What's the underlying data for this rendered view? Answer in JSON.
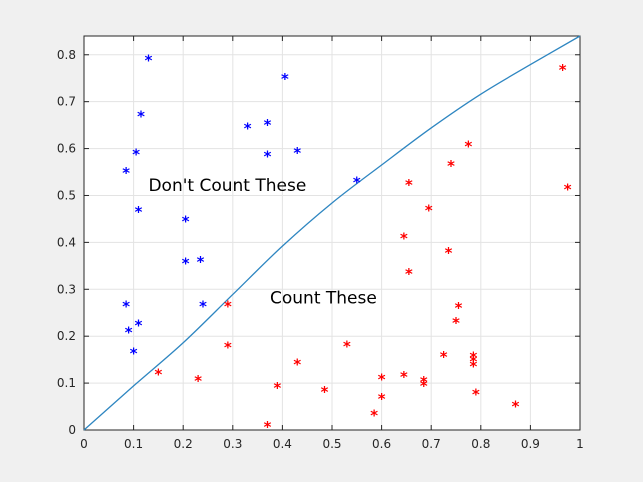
{
  "chart_data": {
    "type": "scatter",
    "xlim": [
      0,
      1
    ],
    "ylim": [
      0,
      0.84
    ],
    "x_ticks": [
      "0",
      "0.1",
      "0.2",
      "0.3",
      "0.4",
      "0.5",
      "0.6",
      "0.7",
      "0.8",
      "0.9",
      "1"
    ],
    "y_ticks": [
      "0",
      "0.1",
      "0.2",
      "0.3",
      "0.4",
      "0.5",
      "0.6",
      "0.7",
      "0.8"
    ],
    "grid": true,
    "curve": {
      "color": "#2e86c1",
      "x": [
        0,
        0.1,
        0.2,
        0.3,
        0.4,
        0.5,
        0.6,
        0.7,
        0.8,
        0.9,
        1.0
      ],
      "y": [
        0,
        0.094,
        0.186,
        0.289,
        0.392,
        0.484,
        0.565,
        0.644,
        0.716,
        0.779,
        0.84
      ]
    },
    "series": [
      {
        "color": "#0000ff",
        "marker": "*",
        "points": [
          [
            0.13,
            0.79
          ],
          [
            0.405,
            0.75
          ],
          [
            0.115,
            0.67
          ],
          [
            0.33,
            0.645
          ],
          [
            0.37,
            0.652
          ],
          [
            0.105,
            0.59
          ],
          [
            0.37,
            0.585
          ],
          [
            0.43,
            0.593
          ],
          [
            0.085,
            0.55
          ],
          [
            0.55,
            0.53
          ],
          [
            0.11,
            0.467
          ],
          [
            0.205,
            0.447
          ],
          [
            0.205,
            0.357
          ],
          [
            0.235,
            0.36
          ],
          [
            0.085,
            0.265
          ],
          [
            0.24,
            0.265
          ],
          [
            0.11,
            0.225
          ],
          [
            0.09,
            0.21
          ],
          [
            0.1,
            0.165
          ]
        ]
      },
      {
        "color": "#ff0000",
        "marker": "*",
        "points": [
          [
            0.965,
            0.77
          ],
          [
            0.775,
            0.607
          ],
          [
            0.74,
            0.565
          ],
          [
            0.655,
            0.525
          ],
          [
            0.975,
            0.515
          ],
          [
            0.695,
            0.47
          ],
          [
            0.645,
            0.41
          ],
          [
            0.735,
            0.38
          ],
          [
            0.655,
            0.335
          ],
          [
            0.29,
            0.265
          ],
          [
            0.755,
            0.262
          ],
          [
            0.75,
            0.23
          ],
          [
            0.53,
            0.18
          ],
          [
            0.29,
            0.178
          ],
          [
            0.725,
            0.158
          ],
          [
            0.785,
            0.157
          ],
          [
            0.785,
            0.148
          ],
          [
            0.43,
            0.142
          ],
          [
            0.785,
            0.138
          ],
          [
            0.15,
            0.12
          ],
          [
            0.645,
            0.115
          ],
          [
            0.6,
            0.11
          ],
          [
            0.23,
            0.107
          ],
          [
            0.685,
            0.105
          ],
          [
            0.685,
            0.096
          ],
          [
            0.39,
            0.092
          ],
          [
            0.485,
            0.083
          ],
          [
            0.79,
            0.078
          ],
          [
            0.6,
            0.068
          ],
          [
            0.87,
            0.052
          ],
          [
            0.585,
            0.033
          ],
          [
            0.37,
            0.008
          ]
        ]
      }
    ],
    "annotations": [
      {
        "text": "Don't Count These",
        "x": 0.13,
        "y": 0.51
      },
      {
        "text": "Count These",
        "x": 0.375,
        "y": 0.27
      }
    ]
  }
}
